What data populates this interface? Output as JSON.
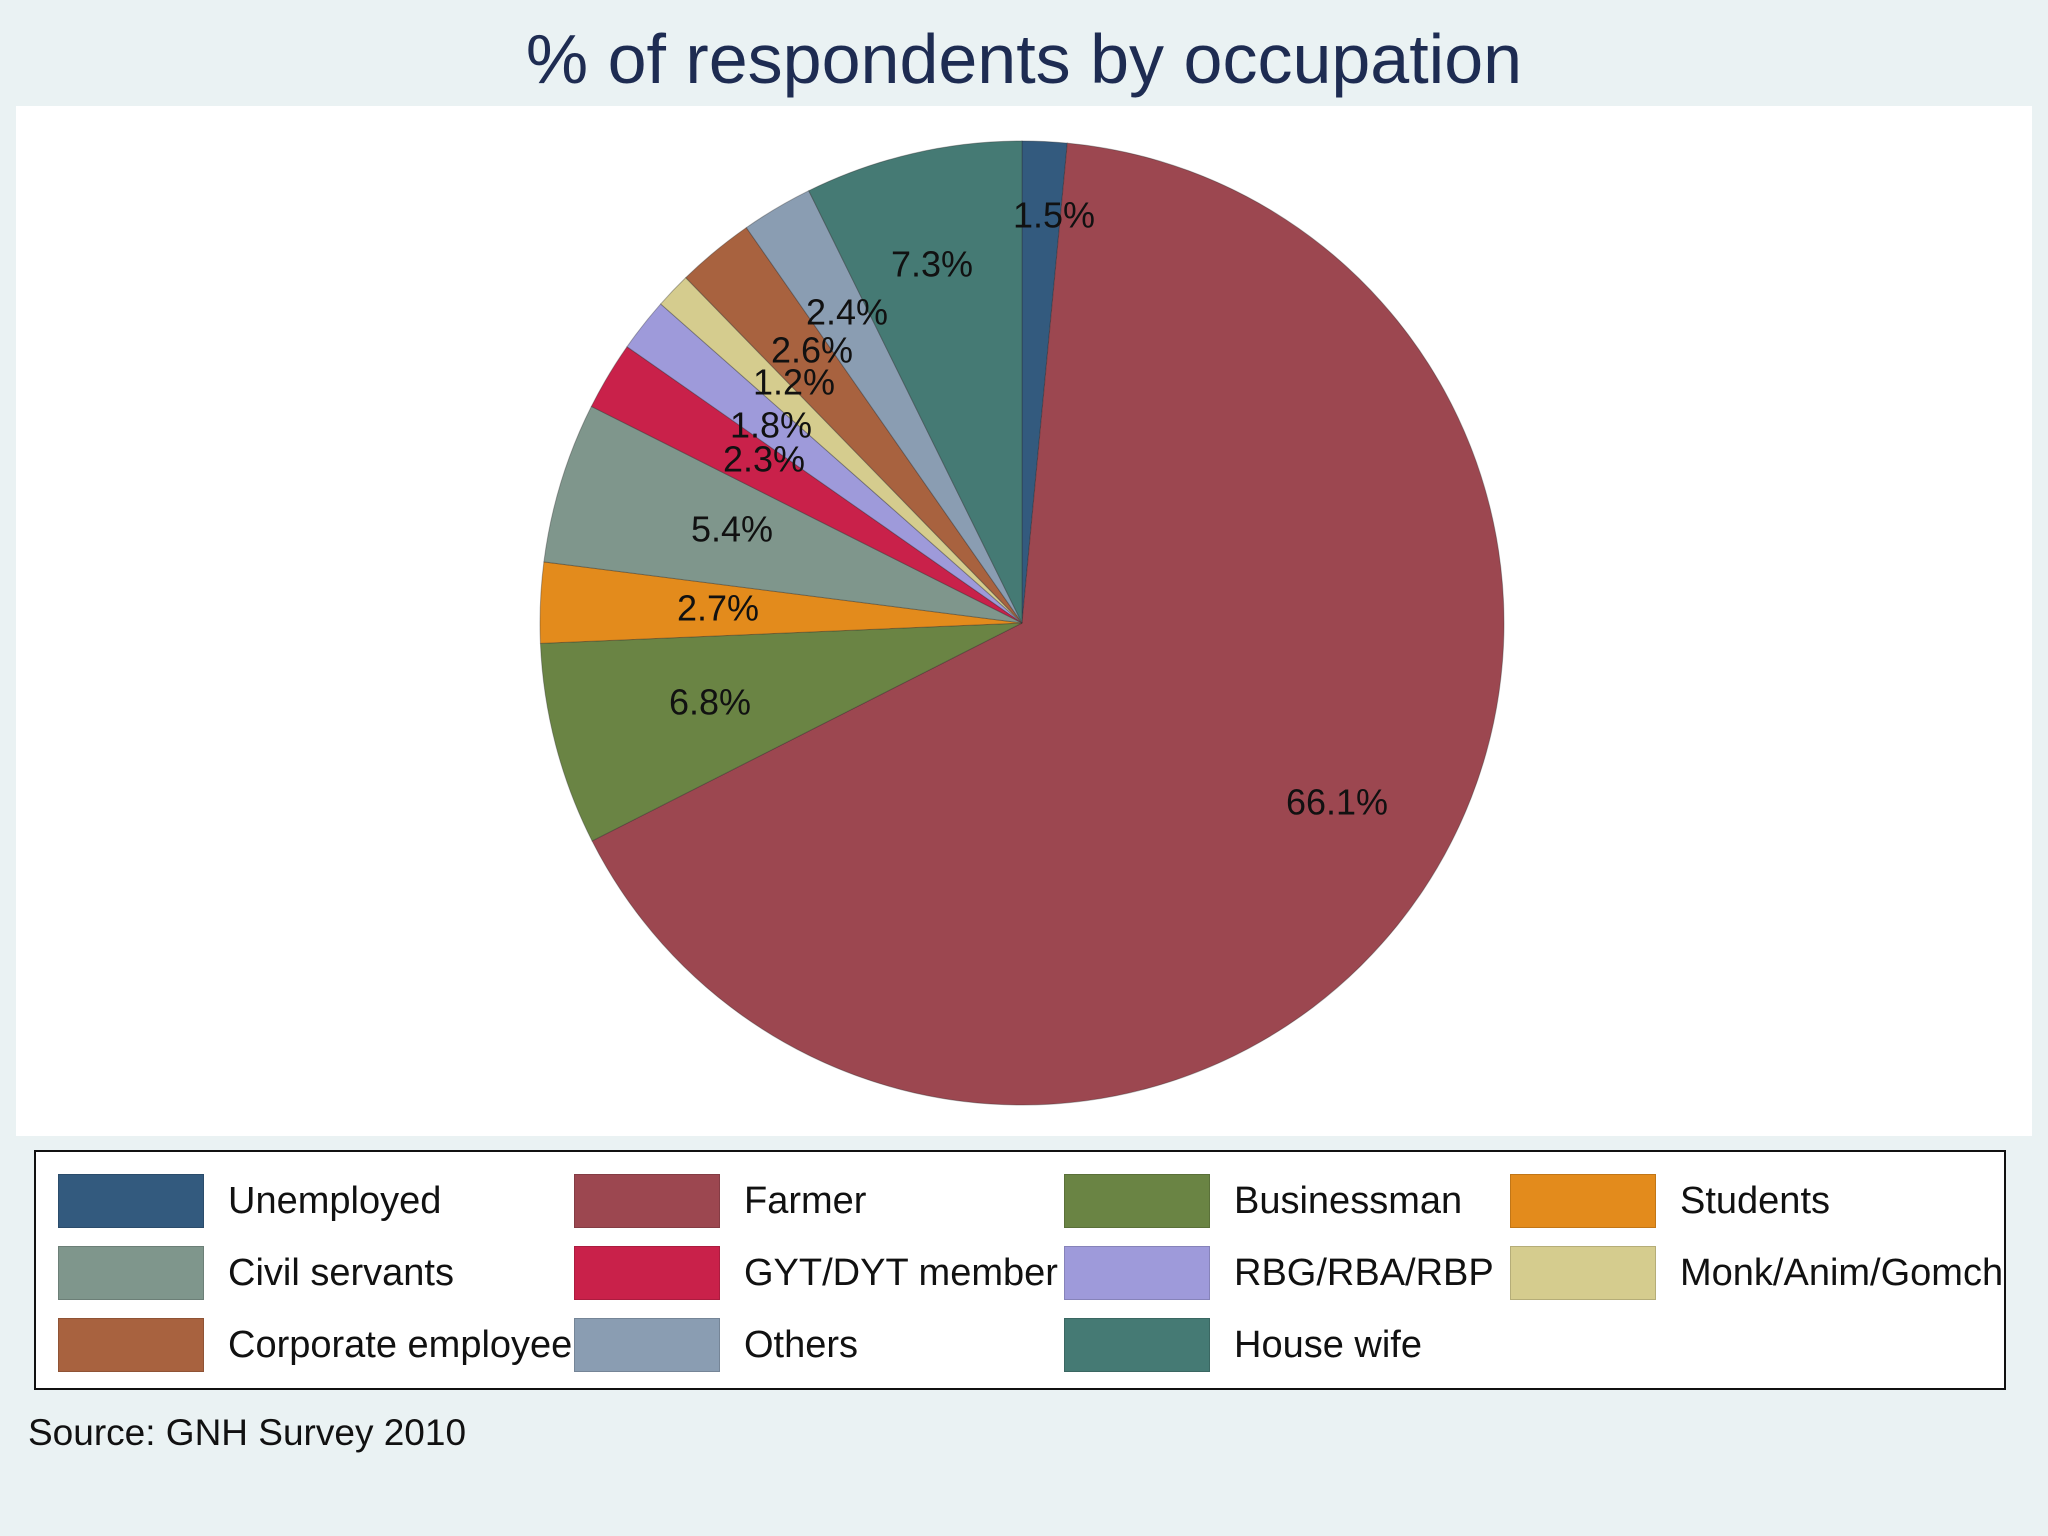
{
  "chart_data": {
    "type": "pie",
    "title": "% of respondents by occupation",
    "note": "Source: GNH Survey 2010",
    "legend_position": "bottom",
    "slices": [
      {
        "label": "Unemployed",
        "value": 1.5,
        "value_label": "1.5%",
        "color": "#335a7e"
      },
      {
        "label": "Farmer",
        "value": 66.1,
        "value_label": "66.1%",
        "color": "#9c4750"
      },
      {
        "label": "Businessman",
        "value": 6.8,
        "value_label": "6.8%",
        "color": "#6a8444"
      },
      {
        "label": "Students",
        "value": 2.7,
        "value_label": "2.7%",
        "color": "#e38b1c"
      },
      {
        "label": "Civil servants",
        "value": 5.4,
        "value_label": "5.4%",
        "color": "#7f968c"
      },
      {
        "label": "GYT/DYT member",
        "value": 2.3,
        "value_label": "2.3%",
        "color": "#c9214a"
      },
      {
        "label": "RBG/RBA/RBP",
        "value": 1.8,
        "value_label": "1.8%",
        "color": "#9e9ada"
      },
      {
        "label": "Monk/Anim/Gomchen",
        "value": 1.2,
        "value_label": "1.2%",
        "color": "#d5cc8e"
      },
      {
        "label": "Corporate employee",
        "value": 2.6,
        "value_label": "2.6%",
        "color": "#a8623f"
      },
      {
        "label": "Others",
        "value": 2.4,
        "value_label": "2.4%",
        "color": "#8a9db2"
      },
      {
        "label": "House wife",
        "value": 7.3,
        "value_label": "7.3%",
        "color": "#457a74"
      }
    ]
  }
}
